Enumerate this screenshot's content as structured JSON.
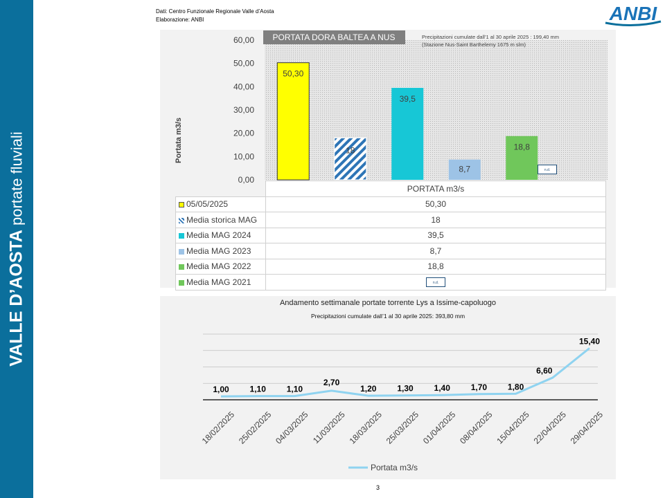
{
  "sidebar": {
    "title_bold": "VALLE D’AOSTA",
    "title_normal": "portate fluviali"
  },
  "credits": {
    "line1": "Dati: Centro Funzionale Regionale Valle d’Aosta",
    "line2": "Elaborazione: ANBI"
  },
  "logo": {
    "text": "ANBI"
  },
  "page_number": "3",
  "colors": {
    "sidebar": "#0b6f9c",
    "yellow": "#ffff00",
    "hatch": "#2e75b6",
    "cyan": "#17c7d6",
    "lightblue": "#9dc3e6",
    "green": "#70c75b",
    "line": "#8fd3f0"
  },
  "chart_data": [
    {
      "type": "bar",
      "title": "PORTATA DORA BALTEA A NUS",
      "annotation": [
        "Precipitazioni cumulate dall’1 al 30 aprile 2025 : 199,40 mm",
        "(Stazione Nus-Saint Barthelemy 1675 m slm)"
      ],
      "ylabel": "Portata m3/s",
      "ylim": [
        0,
        60
      ],
      "yticks": [
        "0,00",
        "10,00",
        "20,00",
        "30,00",
        "40,00",
        "50,00",
        "60,00"
      ],
      "categories": [
        "05/05/2025",
        "Media storica MAG",
        "Media MAG 2024",
        "Media MAG 2023",
        "Media MAG 2022",
        "Media MAG 2021"
      ],
      "series": [
        {
          "name": "PORTATA m3/s",
          "values": [
            50.3,
            18,
            39.5,
            8.7,
            18.8,
            null
          ]
        }
      ],
      "value_labels": [
        "50,30",
        "18",
        "39,5",
        "8,7",
        "18,8",
        "n.d."
      ],
      "grid": false,
      "legend": "data-table"
    },
    {
      "type": "line",
      "title": "Andamento settimanale portate torrente Lys a Issime-capoluogo",
      "subtitle": "Precipitazioni cumulate dall’1 al 30 aprile 2025: 393,80 mm",
      "x": [
        "18/02/2025",
        "25/02/2025",
        "04/03/2025",
        "11/03/2025",
        "18/03/2025",
        "25/03/2025",
        "01/04/2025",
        "08/04/2025",
        "15/04/2025",
        "22/04/2025",
        "29/04/2025"
      ],
      "series": [
        {
          "name": "Portata m3/s",
          "values": [
            1.0,
            1.1,
            1.1,
            2.7,
            1.2,
            1.3,
            1.4,
            1.7,
            1.8,
            6.6,
            15.4
          ]
        }
      ],
      "value_labels": [
        "1,00",
        "1,10",
        "1,10",
        "2,70",
        "1,20",
        "1,30",
        "1,40",
        "1,70",
        "1,80",
        "6,60",
        "15,40"
      ],
      "ylim": [
        0,
        20
      ],
      "grid": true,
      "legend": "bottom"
    }
  ]
}
